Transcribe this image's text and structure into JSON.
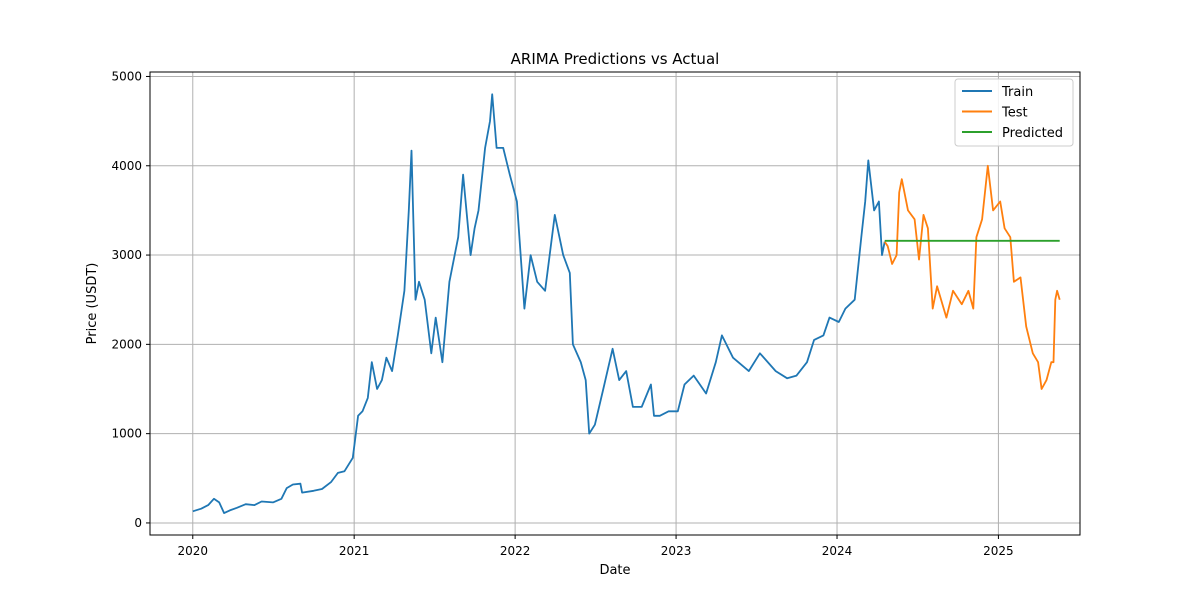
{
  "chart_data": {
    "type": "line",
    "title": "ARIMA Predictions vs Actual",
    "xlabel": "Date",
    "ylabel": "Price (USDT)",
    "xlim": [
      "2019-09-26",
      "2025-07-05"
    ],
    "ylim": [
      -135,
      5050
    ],
    "x_ticks": [
      "2020",
      "2021",
      "2022",
      "2023",
      "2024",
      "2025"
    ],
    "y_ticks": [
      "0",
      "1000",
      "2000",
      "3000",
      "4000",
      "5000"
    ],
    "grid": true,
    "legend_position": "top-right",
    "series": [
      {
        "name": "Train",
        "color": "#1f77b4",
        "points": [
          [
            "2020-01-01",
            130
          ],
          [
            "2020-01-20",
            160
          ],
          [
            "2020-02-05",
            200
          ],
          [
            "2020-02-18",
            270
          ],
          [
            "2020-03-01",
            230
          ],
          [
            "2020-03-12",
            110
          ],
          [
            "2020-03-25",
            140
          ],
          [
            "2020-04-10",
            170
          ],
          [
            "2020-04-30",
            210
          ],
          [
            "2020-05-20",
            200
          ],
          [
            "2020-06-05",
            240
          ],
          [
            "2020-07-01",
            230
          ],
          [
            "2020-07-20",
            270
          ],
          [
            "2020-08-01",
            390
          ],
          [
            "2020-08-15",
            430
          ],
          [
            "2020-09-01",
            440
          ],
          [
            "2020-09-05",
            340
          ],
          [
            "2020-10-01",
            360
          ],
          [
            "2020-10-20",
            380
          ],
          [
            "2020-11-10",
            460
          ],
          [
            "2020-11-25",
            560
          ],
          [
            "2020-12-10",
            580
          ],
          [
            "2020-12-29",
            730
          ],
          [
            "2021-01-10",
            1200
          ],
          [
            "2021-01-20",
            1250
          ],
          [
            "2021-02-01",
            1400
          ],
          [
            "2021-02-10",
            1800
          ],
          [
            "2021-02-22",
            1500
          ],
          [
            "2021-03-05",
            1600
          ],
          [
            "2021-03-15",
            1850
          ],
          [
            "2021-03-28",
            1700
          ],
          [
            "2021-04-10",
            2100
          ],
          [
            "2021-04-25",
            2600
          ],
          [
            "2021-05-05",
            3500
          ],
          [
            "2021-05-11",
            4170
          ],
          [
            "2021-05-20",
            2500
          ],
          [
            "2021-05-28",
            2700
          ],
          [
            "2021-06-10",
            2500
          ],
          [
            "2021-06-25",
            1900
          ],
          [
            "2021-07-05",
            2300
          ],
          [
            "2021-07-20",
            1800
          ],
          [
            "2021-08-05",
            2700
          ],
          [
            "2021-08-25",
            3200
          ],
          [
            "2021-09-05",
            3900
          ],
          [
            "2021-09-22",
            3000
          ],
          [
            "2021-10-01",
            3300
          ],
          [
            "2021-10-10",
            3500
          ],
          [
            "2021-10-25",
            4200
          ],
          [
            "2021-11-05",
            4500
          ],
          [
            "2021-11-10",
            4800
          ],
          [
            "2021-11-20",
            4200
          ],
          [
            "2021-12-05",
            4200
          ],
          [
            "2021-12-20",
            3900
          ],
          [
            "2022-01-05",
            3600
          ],
          [
            "2022-01-22",
            2400
          ],
          [
            "2022-02-05",
            3000
          ],
          [
            "2022-02-20",
            2700
          ],
          [
            "2022-03-10",
            2600
          ],
          [
            "2022-04-01",
            3450
          ],
          [
            "2022-04-20",
            3000
          ],
          [
            "2022-05-05",
            2800
          ],
          [
            "2022-05-12",
            2000
          ],
          [
            "2022-05-30",
            1800
          ],
          [
            "2022-06-10",
            1600
          ],
          [
            "2022-06-18",
            1000
          ],
          [
            "2022-07-01",
            1100
          ],
          [
            "2022-07-20",
            1500
          ],
          [
            "2022-08-10",
            1950
          ],
          [
            "2022-08-25",
            1600
          ],
          [
            "2022-09-10",
            1700
          ],
          [
            "2022-09-25",
            1300
          ],
          [
            "2022-10-15",
            1300
          ],
          [
            "2022-11-05",
            1550
          ],
          [
            "2022-11-12",
            1200
          ],
          [
            "2022-11-25",
            1200
          ],
          [
            "2022-12-15",
            1250
          ],
          [
            "2023-01-05",
            1250
          ],
          [
            "2023-01-20",
            1550
          ],
          [
            "2023-02-10",
            1650
          ],
          [
            "2023-03-10",
            1450
          ],
          [
            "2023-04-01",
            1800
          ],
          [
            "2023-04-15",
            2100
          ],
          [
            "2023-05-10",
            1850
          ],
          [
            "2023-06-15",
            1700
          ],
          [
            "2023-07-10",
            1900
          ],
          [
            "2023-08-15",
            1700
          ],
          [
            "2023-09-10",
            1620
          ],
          [
            "2023-10-01",
            1650
          ],
          [
            "2023-10-25",
            1800
          ],
          [
            "2023-11-10",
            2050
          ],
          [
            "2023-12-01",
            2100
          ],
          [
            "2023-12-15",
            2300
          ],
          [
            "2024-01-05",
            2250
          ],
          [
            "2024-01-20",
            2400
          ],
          [
            "2024-02-10",
            2500
          ],
          [
            "2024-02-25",
            3200
          ],
          [
            "2024-03-05",
            3600
          ],
          [
            "2024-03-12",
            4060
          ],
          [
            "2024-03-25",
            3500
          ],
          [
            "2024-04-05",
            3600
          ],
          [
            "2024-04-12",
            3000
          ],
          [
            "2024-04-18",
            3150
          ]
        ]
      },
      {
        "name": "Test",
        "color": "#ff7f0e",
        "points": [
          [
            "2024-04-18",
            3150
          ],
          [
            "2024-04-25",
            3100
          ],
          [
            "2024-05-05",
            2900
          ],
          [
            "2024-05-15",
            3000
          ],
          [
            "2024-05-21",
            3700
          ],
          [
            "2024-05-27",
            3850
          ],
          [
            "2024-06-10",
            3500
          ],
          [
            "2024-06-25",
            3400
          ],
          [
            "2024-07-05",
            2950
          ],
          [
            "2024-07-15",
            3450
          ],
          [
            "2024-07-25",
            3300
          ],
          [
            "2024-08-05",
            2400
          ],
          [
            "2024-08-15",
            2650
          ],
          [
            "2024-09-05",
            2300
          ],
          [
            "2024-09-20",
            2600
          ],
          [
            "2024-10-10",
            2450
          ],
          [
            "2024-10-25",
            2600
          ],
          [
            "2024-11-05",
            2400
          ],
          [
            "2024-11-12",
            3200
          ],
          [
            "2024-11-25",
            3400
          ],
          [
            "2024-12-08",
            4000
          ],
          [
            "2024-12-20",
            3500
          ],
          [
            "2025-01-05",
            3600
          ],
          [
            "2025-01-15",
            3300
          ],
          [
            "2025-01-28",
            3200
          ],
          [
            "2025-02-05",
            2700
          ],
          [
            "2025-02-20",
            2750
          ],
          [
            "2025-03-05",
            2200
          ],
          [
            "2025-03-20",
            1900
          ],
          [
            "2025-04-01",
            1800
          ],
          [
            "2025-04-09",
            1500
          ],
          [
            "2025-04-20",
            1600
          ],
          [
            "2025-05-01",
            1800
          ],
          [
            "2025-05-06",
            1800
          ],
          [
            "2025-05-10",
            2500
          ],
          [
            "2025-05-14",
            2600
          ],
          [
            "2025-05-20",
            2500
          ]
        ]
      },
      {
        "name": "Predicted",
        "color": "#2ca02c",
        "points": [
          [
            "2024-04-18",
            3160
          ],
          [
            "2025-05-20",
            3160
          ]
        ]
      }
    ]
  }
}
